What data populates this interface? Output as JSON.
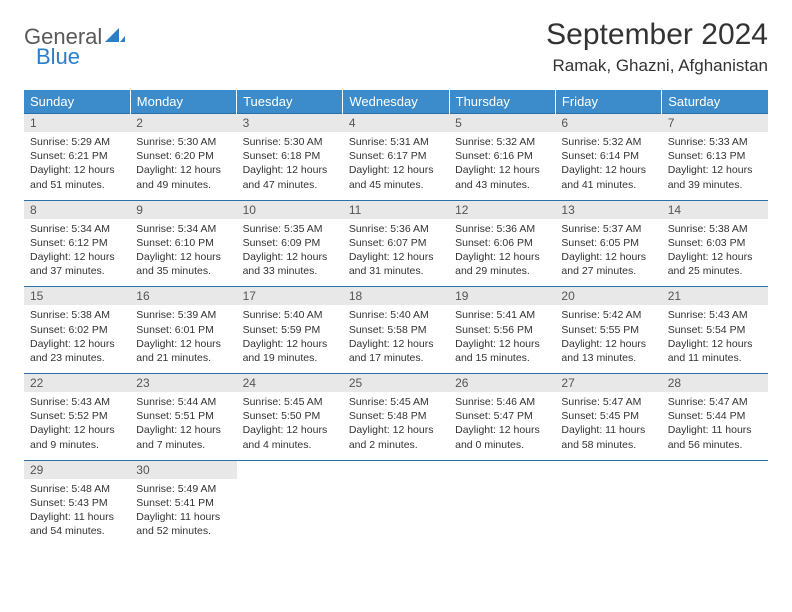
{
  "logo": {
    "part1": "General",
    "part2": "Blue"
  },
  "title": "September 2024",
  "location": "Ramak, Ghazni, Afghanistan",
  "colors": {
    "header_bg": "#3c8ccc",
    "header_text": "#ffffff",
    "daynum_bg": "#e8e8e8",
    "border": "#2a6fa8",
    "logo_gray": "#5a5a5a",
    "logo_blue": "#2a7fc9"
  },
  "day_names": [
    "Sunday",
    "Monday",
    "Tuesday",
    "Wednesday",
    "Thursday",
    "Friday",
    "Saturday"
  ],
  "weeks": [
    [
      {
        "n": "1",
        "sr": "5:29 AM",
        "ss": "6:21 PM",
        "dh": "12",
        "dm": "51"
      },
      {
        "n": "2",
        "sr": "5:30 AM",
        "ss": "6:20 PM",
        "dh": "12",
        "dm": "49"
      },
      {
        "n": "3",
        "sr": "5:30 AM",
        "ss": "6:18 PM",
        "dh": "12",
        "dm": "47"
      },
      {
        "n": "4",
        "sr": "5:31 AM",
        "ss": "6:17 PM",
        "dh": "12",
        "dm": "45"
      },
      {
        "n": "5",
        "sr": "5:32 AM",
        "ss": "6:16 PM",
        "dh": "12",
        "dm": "43"
      },
      {
        "n": "6",
        "sr": "5:32 AM",
        "ss": "6:14 PM",
        "dh": "12",
        "dm": "41"
      },
      {
        "n": "7",
        "sr": "5:33 AM",
        "ss": "6:13 PM",
        "dh": "12",
        "dm": "39"
      }
    ],
    [
      {
        "n": "8",
        "sr": "5:34 AM",
        "ss": "6:12 PM",
        "dh": "12",
        "dm": "37"
      },
      {
        "n": "9",
        "sr": "5:34 AM",
        "ss": "6:10 PM",
        "dh": "12",
        "dm": "35"
      },
      {
        "n": "10",
        "sr": "5:35 AM",
        "ss": "6:09 PM",
        "dh": "12",
        "dm": "33"
      },
      {
        "n": "11",
        "sr": "5:36 AM",
        "ss": "6:07 PM",
        "dh": "12",
        "dm": "31"
      },
      {
        "n": "12",
        "sr": "5:36 AM",
        "ss": "6:06 PM",
        "dh": "12",
        "dm": "29"
      },
      {
        "n": "13",
        "sr": "5:37 AM",
        "ss": "6:05 PM",
        "dh": "12",
        "dm": "27"
      },
      {
        "n": "14",
        "sr": "5:38 AM",
        "ss": "6:03 PM",
        "dh": "12",
        "dm": "25"
      }
    ],
    [
      {
        "n": "15",
        "sr": "5:38 AM",
        "ss": "6:02 PM",
        "dh": "12",
        "dm": "23"
      },
      {
        "n": "16",
        "sr": "5:39 AM",
        "ss": "6:01 PM",
        "dh": "12",
        "dm": "21"
      },
      {
        "n": "17",
        "sr": "5:40 AM",
        "ss": "5:59 PM",
        "dh": "12",
        "dm": "19"
      },
      {
        "n": "18",
        "sr": "5:40 AM",
        "ss": "5:58 PM",
        "dh": "12",
        "dm": "17"
      },
      {
        "n": "19",
        "sr": "5:41 AM",
        "ss": "5:56 PM",
        "dh": "12",
        "dm": "15"
      },
      {
        "n": "20",
        "sr": "5:42 AM",
        "ss": "5:55 PM",
        "dh": "12",
        "dm": "13"
      },
      {
        "n": "21",
        "sr": "5:43 AM",
        "ss": "5:54 PM",
        "dh": "12",
        "dm": "11"
      }
    ],
    [
      {
        "n": "22",
        "sr": "5:43 AM",
        "ss": "5:52 PM",
        "dh": "12",
        "dm": "9"
      },
      {
        "n": "23",
        "sr": "5:44 AM",
        "ss": "5:51 PM",
        "dh": "12",
        "dm": "7"
      },
      {
        "n": "24",
        "sr": "5:45 AM",
        "ss": "5:50 PM",
        "dh": "12",
        "dm": "4"
      },
      {
        "n": "25",
        "sr": "5:45 AM",
        "ss": "5:48 PM",
        "dh": "12",
        "dm": "2"
      },
      {
        "n": "26",
        "sr": "5:46 AM",
        "ss": "5:47 PM",
        "dh": "12",
        "dm": "0"
      },
      {
        "n": "27",
        "sr": "5:47 AM",
        "ss": "5:45 PM",
        "dh": "11",
        "dm": "58"
      },
      {
        "n": "28",
        "sr": "5:47 AM",
        "ss": "5:44 PM",
        "dh": "11",
        "dm": "56"
      }
    ],
    [
      {
        "n": "29",
        "sr": "5:48 AM",
        "ss": "5:43 PM",
        "dh": "11",
        "dm": "54"
      },
      {
        "n": "30",
        "sr": "5:49 AM",
        "ss": "5:41 PM",
        "dh": "11",
        "dm": "52"
      },
      null,
      null,
      null,
      null,
      null
    ]
  ]
}
